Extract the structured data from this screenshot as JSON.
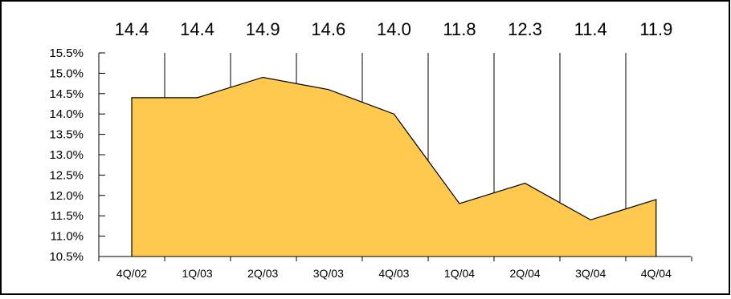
{
  "chart_data": {
    "type": "area",
    "categories": [
      "4Q/02",
      "1Q/03",
      "2Q/03",
      "3Q/03",
      "4Q/03",
      "1Q/04",
      "2Q/04",
      "3Q/04",
      "4Q/04"
    ],
    "values": [
      14.4,
      14.4,
      14.9,
      14.6,
      14.0,
      11.8,
      12.3,
      11.4,
      11.9
    ],
    "value_labels": [
      "14.4",
      "14.4",
      "14.9",
      "14.6",
      "14.0",
      "11.8",
      "12.3",
      "11.4",
      "11.9"
    ],
    "y_ticks": [
      "15.5%",
      "15.0%",
      "14.5%",
      "14.0%",
      "13.5%",
      "13.0%",
      "12.5%",
      "12.0%",
      "11.5%",
      "11.0%",
      "10.5%"
    ],
    "ylim": [
      10.5,
      15.5
    ],
    "title": "",
    "xlabel": "",
    "ylabel": "",
    "grid": "vertical",
    "fill_color": "#FFC94F",
    "line_color": "#000000"
  }
}
